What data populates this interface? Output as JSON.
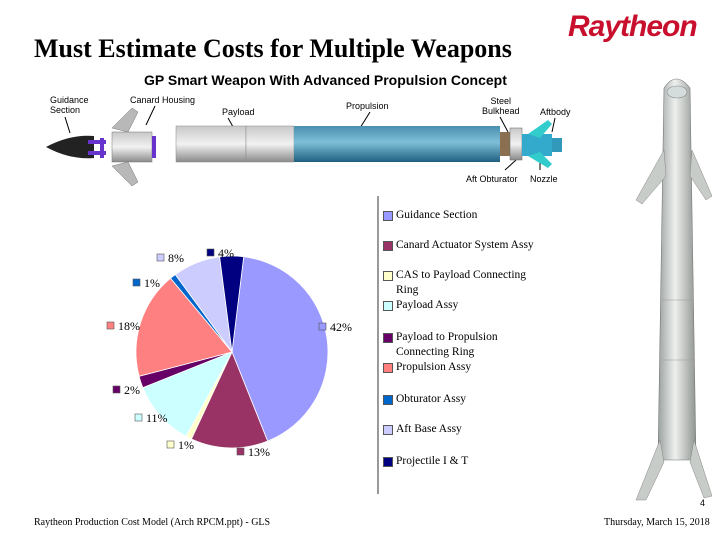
{
  "slide": {
    "title": "Must Estimate Costs for Multiple Weapons",
    "brand": "Raytheon",
    "subtitle": "GP Smart Weapon With Advanced Propulsion Concept",
    "page_number": "4",
    "footer_left": "Raytheon Production Cost Model (Arch RPCM.ppt) - GLS",
    "footer_right": "Thursday, March 15, 2018"
  },
  "diagram": {
    "labels": {
      "guidance": [
        "Guidance",
        "Section"
      ],
      "canard": "Canard Housing",
      "payload": "Payload",
      "propulsion": "Propulsion",
      "bulkhead": [
        "Steel",
        "Bulkhead"
      ],
      "aftbody": "Aftbody",
      "obturator": "Aft Obturator",
      "nozzle": "Nozzle"
    }
  },
  "colors": {
    "guidance": "#9999ff",
    "canard": "#993366",
    "cas_ring": "#ffffcc",
    "payload": "#ccffff",
    "payload_prop_ring": "#660066",
    "propulsion": "#ff8080",
    "obturator": "#0066cc",
    "aft_base": "#ccccff",
    "projectile": "#000080"
  },
  "chart_data": {
    "type": "pie",
    "legend_position": "right",
    "slices": [
      {
        "label": "Guidance Section",
        "value": 42,
        "display": "42%",
        "color_key": "guidance"
      },
      {
        "label": "Canard Actuator System Assy",
        "value": 13,
        "display": "13%",
        "color_key": "canard"
      },
      {
        "label": "CAS to Payload Connecting Ring",
        "value": 1,
        "display": "1%",
        "color_key": "cas_ring"
      },
      {
        "label": "Payload Assy",
        "value": 11,
        "display": "11%",
        "color_key": "payload"
      },
      {
        "label": "Payload to Propulsion Connecting Ring",
        "value": 2,
        "display": "2%",
        "color_key": "payload_prop_ring"
      },
      {
        "label": "Propulsion Assy",
        "value": 18,
        "display": "18%",
        "color_key": "propulsion"
      },
      {
        "label": "Obturator Assy",
        "value": 1,
        "display": "1%",
        "color_key": "obturator"
      },
      {
        "label": "Aft Base Assy",
        "value": 8,
        "display": "8%",
        "color_key": "aft_base"
      },
      {
        "label": "Projectile I & T",
        "value": 4,
        "display": "4%",
        "color_key": "projectile"
      }
    ]
  }
}
